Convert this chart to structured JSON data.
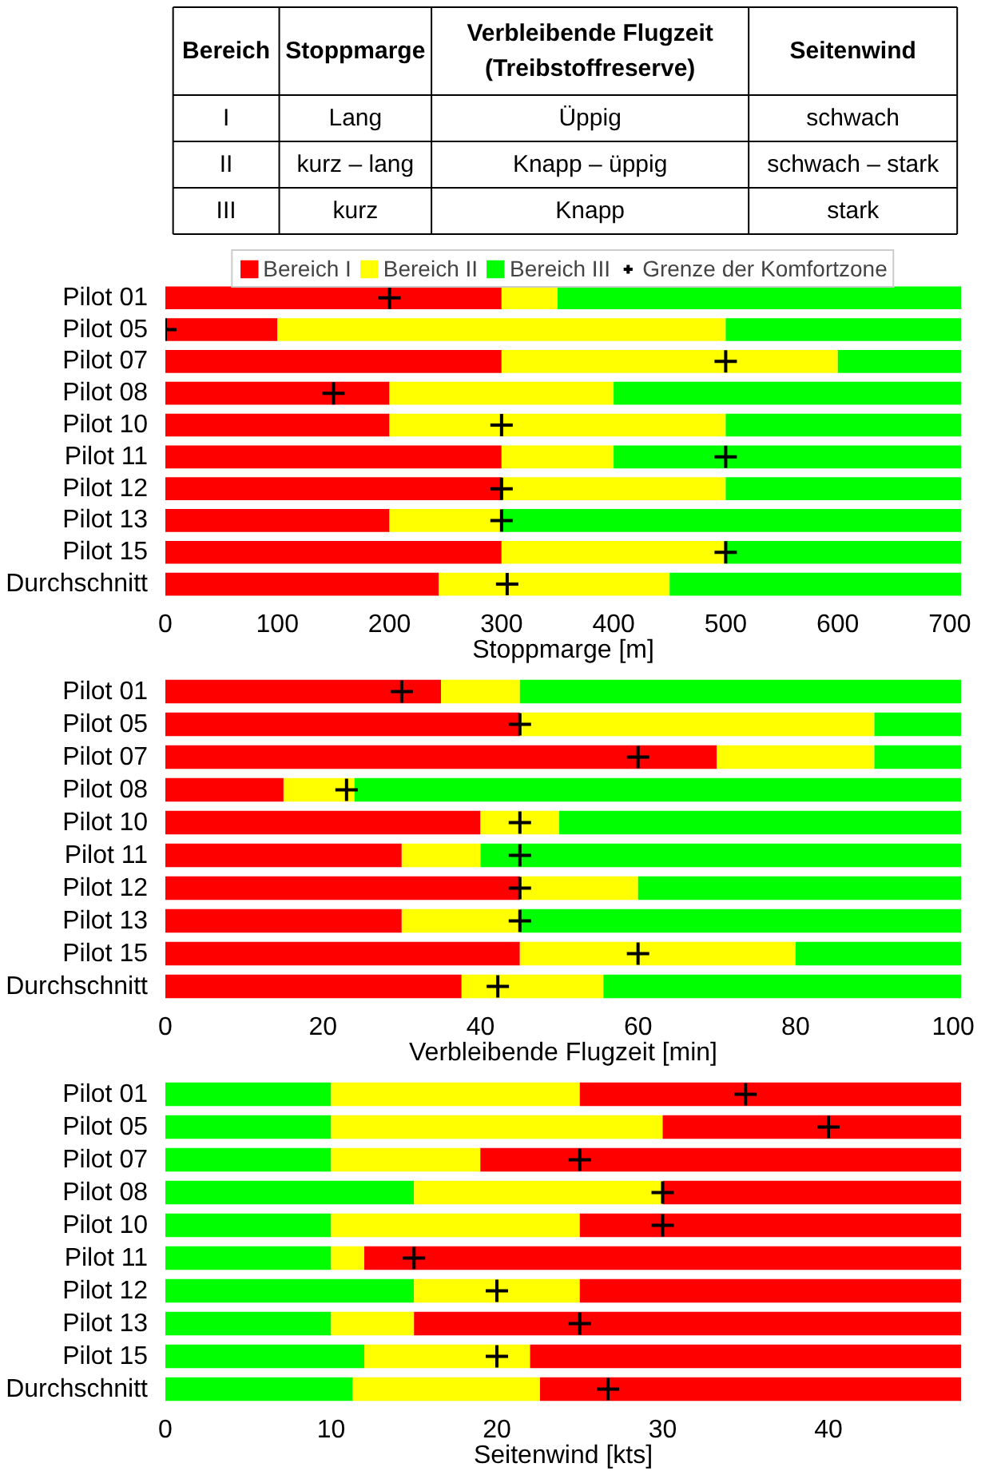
{
  "chart_data": [
    {
      "type": "other",
      "categories": [
        "Bereich",
        "Stoppmarge",
        "Verbleibende Flugzeit\n(Treibstoffreserve)",
        "Seitenwind"
      ],
      "annotations": [
        "I",
        "Lang",
        "Üppig",
        "schwach",
        "II",
        "kurz – lang",
        "Knapp – üppig",
        "schwach – stark",
        "III",
        "kurz",
        "Knapp",
        "stark"
      ]
    },
    {
      "type": "bar",
      "orientation": "horizontal",
      "stacked": true,
      "legend": "top",
      "xlabel": "Stoppmarge [m]",
      "xlim": [
        0,
        710
      ],
      "xticks": [
        0,
        100,
        200,
        300,
        400,
        500,
        600,
        700
      ],
      "categories": [
        "Pilot 01",
        "Pilot 05",
        "Pilot 07",
        "Pilot 08",
        "Pilot 10",
        "Pilot 11",
        "Pilot 12",
        "Pilot 13",
        "Pilot 15",
        "Durchschnitt"
      ],
      "series": [
        {
          "name": "Bereich I",
          "color": "#ff0000",
          "values": [
            300,
            100,
            300,
            200,
            200,
            300,
            300,
            200,
            300,
            244
          ]
        },
        {
          "name": "Bereich II",
          "color": "#ffff00",
          "values": [
            50,
            400,
            300,
            200,
            300,
            100,
            200,
            100,
            200,
            206
          ]
        },
        {
          "name": "Bereich III",
          "color": "#00ff00",
          "values": [
            360,
            210,
            110,
            310,
            210,
            310,
            210,
            410,
            210,
            260
          ]
        },
        {
          "name": "Grenze der Komfortzone",
          "type": "scatter",
          "marker": "cross",
          "color": "#000000",
          "values": [
            200,
            0,
            500,
            150,
            300,
            500,
            300,
            300,
            500,
            305
          ]
        }
      ]
    },
    {
      "type": "bar",
      "orientation": "horizontal",
      "stacked": true,
      "xlabel": "Verbleibende Flugzeit [min]",
      "xlim": [
        0,
        101
      ],
      "xticks": [
        0,
        20,
        40,
        60,
        80,
        100
      ],
      "categories": [
        "Pilot 01",
        "Pilot 05",
        "Pilot 07",
        "Pilot 08",
        "Pilot 10",
        "Pilot 11",
        "Pilot 12",
        "Pilot 13",
        "Pilot 15",
        "Durchschnitt"
      ],
      "series": [
        {
          "color": "#ff0000",
          "values": [
            35,
            45,
            70,
            15,
            40,
            30,
            45,
            30,
            45,
            37.6
          ]
        },
        {
          "color": "#ffff00",
          "values": [
            10,
            45,
            20,
            9,
            10,
            10,
            15,
            15,
            35,
            18
          ]
        },
        {
          "color": "#00ff00",
          "values": [
            56,
            11,
            11,
            77,
            51,
            61,
            41,
            56,
            21,
            45.4
          ]
        },
        {
          "type": "scatter",
          "marker": "cross",
          "color": "#000000",
          "values": [
            30,
            45,
            60,
            23,
            45,
            45,
            45,
            45,
            60,
            42.2
          ]
        }
      ]
    },
    {
      "type": "bar",
      "orientation": "horizontal",
      "stacked": true,
      "xlabel": "Seitenwind [kts]",
      "xlim": [
        0,
        48
      ],
      "xticks": [
        0,
        10,
        20,
        30,
        40
      ],
      "categories": [
        "Pilot 01",
        "Pilot 05",
        "Pilot 07",
        "Pilot 08",
        "Pilot 10",
        "Pilot 11",
        "Pilot 12",
        "Pilot 13",
        "Pilot 15",
        "Durchschnitt"
      ],
      "series": [
        {
          "color": "#00ff00",
          "values": [
            10,
            10,
            10,
            15,
            10,
            10,
            15,
            10,
            12,
            11.3
          ]
        },
        {
          "color": "#ffff00",
          "values": [
            15,
            20,
            9,
            15,
            15,
            2,
            10,
            5,
            10,
            11.3
          ]
        },
        {
          "color": "#ff0000",
          "values": [
            23,
            18,
            29,
            18,
            23,
            36,
            23,
            33,
            26,
            25.4
          ]
        },
        {
          "type": "scatter",
          "marker": "cross",
          "color": "#000000",
          "values": [
            35,
            40,
            25,
            30,
            30,
            15,
            20,
            25,
            20,
            26.7
          ]
        }
      ]
    }
  ]
}
